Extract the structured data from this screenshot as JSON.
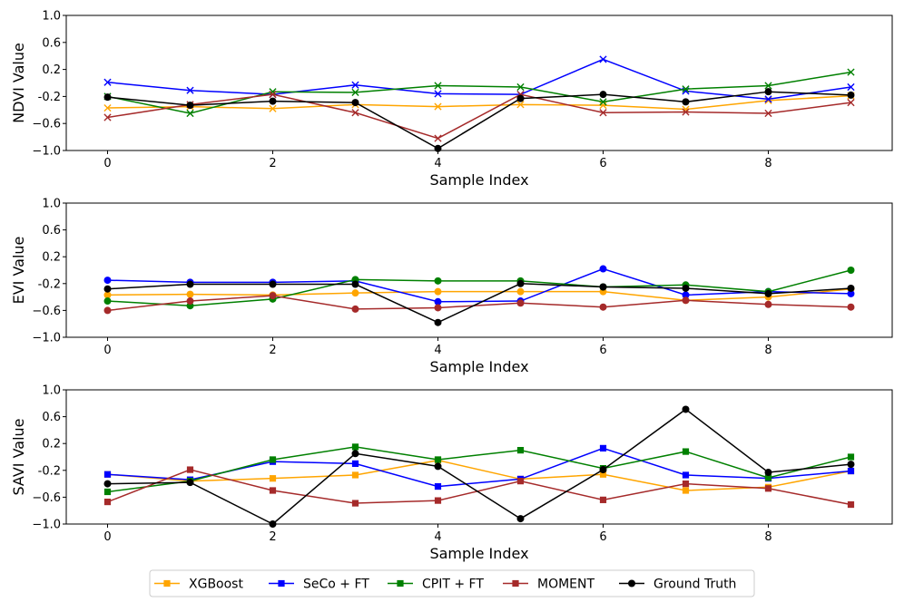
{
  "chart_data": [
    {
      "type": "line",
      "id": "ndvi",
      "xlabel": "Sample Index",
      "ylabel": "NDVI Value",
      "marker": "x",
      "xlim": [
        -0.5,
        9.5
      ],
      "ylim": [
        -1.0,
        1.0
      ],
      "xticks": [
        0,
        2,
        4,
        6,
        8
      ],
      "yticks": [
        -1.0,
        -0.6,
        -0.2,
        0.2,
        0.6,
        1.0
      ],
      "ytick_labels": [
        "−1.0",
        "−0.6",
        "-0.2",
        "0.2",
        "0.6",
        "1.0"
      ],
      "x": [
        0,
        1,
        2,
        3,
        4,
        5,
        6,
        7,
        8,
        9
      ],
      "series": [
        {
          "name": "XGBoost",
          "values": [
            -0.37,
            -0.35,
            -0.38,
            -0.32,
            -0.35,
            -0.32,
            -0.33,
            -0.39,
            -0.26,
            -0.19
          ]
        },
        {
          "name": "SeCo + FT",
          "values": [
            0.01,
            -0.11,
            -0.17,
            -0.03,
            -0.16,
            -0.17,
            0.35,
            -0.12,
            -0.24,
            -0.06
          ]
        },
        {
          "name": "CPIT + FT",
          "values": [
            -0.2,
            -0.45,
            -0.13,
            -0.14,
            -0.04,
            -0.06,
            -0.28,
            -0.09,
            -0.04,
            0.16
          ]
        },
        {
          "name": "MOMENT",
          "values": [
            -0.51,
            -0.32,
            -0.17,
            -0.44,
            -0.82,
            -0.17,
            -0.44,
            -0.43,
            -0.45,
            -0.29
          ]
        },
        {
          "name": "Ground Truth",
          "values": [
            -0.21,
            -0.33,
            -0.27,
            -0.29,
            -0.97,
            -0.23,
            -0.17,
            -0.28,
            -0.13,
            -0.18
          ]
        }
      ]
    },
    {
      "type": "line",
      "id": "evi",
      "xlabel": "Sample Index",
      "ylabel": "EVI Value",
      "marker": "o",
      "xlim": [
        -0.5,
        9.5
      ],
      "ylim": [
        -1.0,
        1.0
      ],
      "xticks": [
        0,
        2,
        4,
        6,
        8
      ],
      "yticks": [
        -1.0,
        -0.6,
        -0.2,
        0.2,
        0.6,
        1.0
      ],
      "ytick_labels": [
        "−1.0",
        "−0.6",
        "-0.2",
        "0.2",
        "0.6",
        "1.0"
      ],
      "x": [
        0,
        1,
        2,
        3,
        4,
        5,
        6,
        7,
        8,
        9
      ],
      "series": [
        {
          "name": "XGBoost",
          "values": [
            -0.37,
            -0.36,
            -0.37,
            -0.34,
            -0.32,
            -0.32,
            -0.32,
            -0.45,
            -0.4,
            -0.28
          ]
        },
        {
          "name": "SeCo + FT",
          "values": [
            -0.15,
            -0.18,
            -0.18,
            -0.16,
            -0.47,
            -0.46,
            0.02,
            -0.37,
            -0.32,
            -0.35
          ]
        },
        {
          "name": "CPIT + FT",
          "values": [
            -0.46,
            -0.53,
            -0.43,
            -0.14,
            -0.16,
            -0.16,
            -0.25,
            -0.22,
            -0.32,
            0.0
          ]
        },
        {
          "name": "MOMENT",
          "values": [
            -0.6,
            -0.46,
            -0.38,
            -0.58,
            -0.56,
            -0.49,
            -0.55,
            -0.45,
            -0.51,
            -0.55
          ]
        },
        {
          "name": "Ground Truth",
          "values": [
            -0.28,
            -0.21,
            -0.21,
            -0.21,
            -0.78,
            -0.2,
            -0.25,
            -0.27,
            -0.35,
            -0.27
          ]
        }
      ]
    },
    {
      "type": "line",
      "id": "savi",
      "xlabel": "Sample Index",
      "ylabel": "SAVI Value",
      "marker": "s",
      "xlim": [
        -0.5,
        9.5
      ],
      "ylim": [
        -1.0,
        1.0
      ],
      "xticks": [
        0,
        2,
        4,
        6,
        8
      ],
      "yticks": [
        -1.0,
        -0.6,
        -0.2,
        0.2,
        0.6,
        1.0
      ],
      "ytick_labels": [
        "−1.0",
        "−0.6",
        "-0.2",
        "0.2",
        "0.6",
        "1.0"
      ],
      "x": [
        0,
        1,
        2,
        3,
        4,
        5,
        6,
        7,
        8,
        9
      ],
      "series": [
        {
          "name": "XGBoost",
          "values": [
            -0.26,
            -0.36,
            -0.32,
            -0.27,
            -0.05,
            -0.33,
            -0.26,
            -0.5,
            -0.45,
            -0.21
          ]
        },
        {
          "name": "SeCo + FT",
          "values": [
            -0.26,
            -0.34,
            -0.07,
            -0.1,
            -0.44,
            -0.33,
            0.13,
            -0.27,
            -0.32,
            -0.21
          ]
        },
        {
          "name": "CPIT + FT",
          "values": [
            -0.52,
            -0.36,
            -0.04,
            0.15,
            -0.04,
            0.1,
            -0.17,
            0.08,
            -0.31,
            0.0
          ]
        },
        {
          "name": "MOMENT",
          "values": [
            -0.67,
            -0.19,
            -0.5,
            -0.69,
            -0.65,
            -0.36,
            -0.64,
            -0.4,
            -0.47,
            -0.71
          ]
        },
        {
          "name": "Ground Truth",
          "values": [
            -0.4,
            -0.38,
            -1.0,
            0.05,
            -0.14,
            -0.92,
            -0.19,
            0.71,
            -0.23,
            -0.11
          ]
        }
      ]
    }
  ],
  "legend": {
    "position": "bottom-center",
    "entries": [
      {
        "name": "XGBoost",
        "color": "#FFA500",
        "marker": "s"
      },
      {
        "name": "SeCo + FT",
        "color": "#0000FF",
        "marker": "s"
      },
      {
        "name": "CPIT + FT",
        "color": "#008000",
        "marker": "s"
      },
      {
        "name": "MOMENT",
        "color": "#A52A2A",
        "marker": "s"
      },
      {
        "name": "Ground Truth",
        "color": "#000000",
        "marker": "o"
      }
    ]
  },
  "colors": {
    "XGBoost": "#FFA500",
    "SeCo + FT": "#0000FF",
    "CPIT + FT": "#008000",
    "MOMENT": "#A52A2A",
    "Ground Truth": "#000000"
  }
}
